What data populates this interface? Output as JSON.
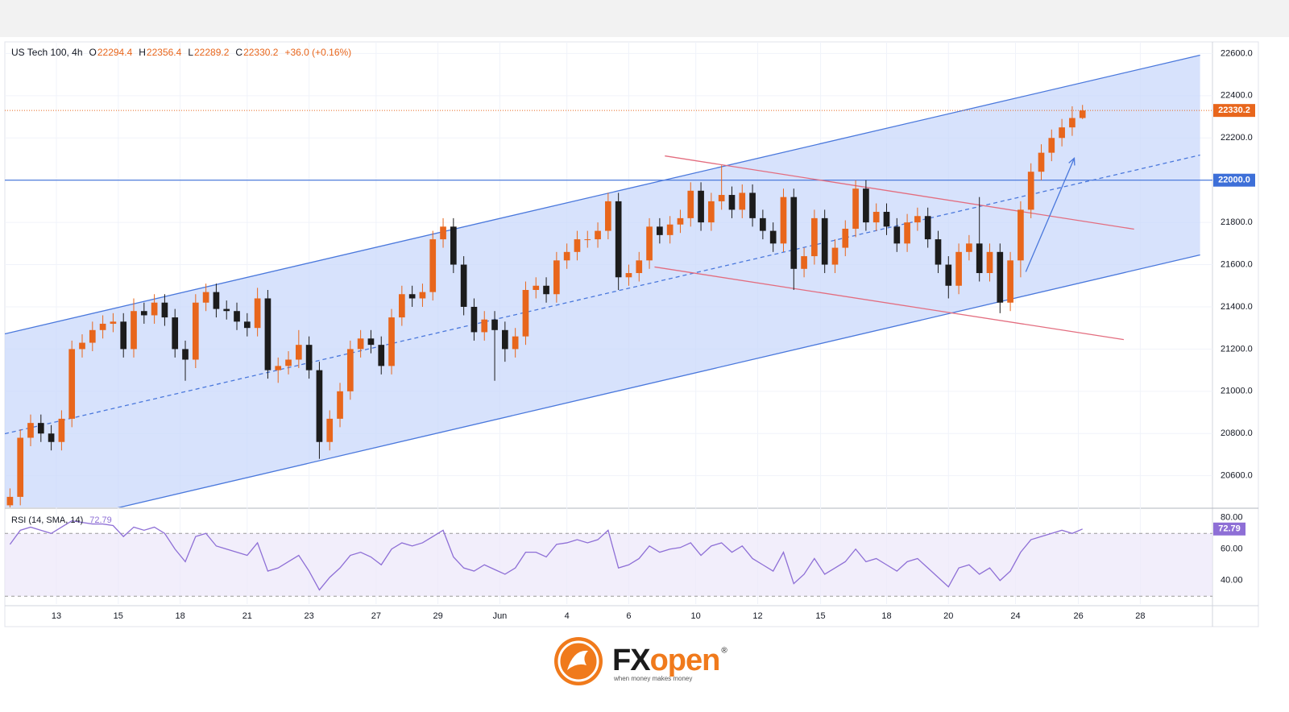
{
  "chart_data": [
    {
      "type": "candlestick",
      "symbol": "US Tech 100, 4h",
      "header_labels": [
        "O",
        "H",
        "L",
        "C"
      ],
      "change": "+36.0 (+0.16%)",
      "up_color": "#e8661c",
      "down_color": "#1c1c1c",
      "open": [
        20460,
        20500,
        20780,
        20850,
        20800,
        20760,
        20870,
        21200,
        21230,
        21290,
        21320,
        21330,
        21200,
        21380,
        21360,
        21420,
        21350,
        21200,
        21150,
        21420,
        21470,
        21390,
        21380,
        21330,
        21300,
        21440,
        21100,
        21120,
        21150,
        21220,
        21100,
        20760,
        20870,
        21000,
        21200,
        21250,
        21220,
        21120,
        21350,
        21460,
        21440,
        21470,
        21720,
        21780,
        21600,
        21400,
        21280,
        21340,
        21290,
        21200,
        21260,
        21480,
        21500,
        21460,
        21620,
        21660,
        21720,
        21720,
        21760,
        21900,
        21540,
        21560,
        21620,
        21780,
        21740,
        21790,
        21820,
        21950,
        21800,
        21900,
        21930,
        21860,
        21940,
        21820,
        21760,
        21700,
        21920,
        21580,
        21640,
        21820,
        21600,
        21680,
        21770,
        21960,
        21800,
        21850,
        21780,
        21700,
        21800,
        21830,
        21720,
        21600,
        21500,
        21660,
        21700,
        21560,
        21660,
        21420,
        21620,
        21860,
        22040,
        22130,
        22200,
        22250,
        22294.4
      ],
      "high": [
        20540,
        20820,
        20890,
        20890,
        20840,
        20910,
        21240,
        21270,
        21330,
        21360,
        21370,
        21370,
        21440,
        21420,
        21460,
        21460,
        21390,
        21240,
        21460,
        21510,
        21510,
        21430,
        21420,
        21370,
        21490,
        21480,
        21160,
        21190,
        21290,
        21260,
        21140,
        20910,
        21040,
        21240,
        21290,
        21290,
        21260,
        21390,
        21500,
        21500,
        21510,
        21760,
        21820,
        21820,
        21640,
        21440,
        21380,
        21380,
        21330,
        21300,
        21520,
        21540,
        21540,
        21660,
        21700,
        21760,
        21760,
        21800,
        21940,
        21940,
        21600,
        21660,
        21820,
        21820,
        21830,
        21860,
        21990,
        21990,
        21940,
        22070,
        21970,
        21980,
        21980,
        21860,
        21800,
        21960,
        21960,
        21680,
        21860,
        21860,
        21720,
        21810,
        22000,
        22000,
        21890,
        21890,
        21820,
        21840,
        21870,
        21870,
        21760,
        21640,
        21700,
        21740,
        21920,
        21700,
        21700,
        21660,
        21900,
        22080,
        22170,
        22240,
        22290,
        22350,
        22356.4
      ],
      "low": [
        20430,
        20460,
        20740,
        20760,
        20720,
        20720,
        20830,
        21160,
        21190,
        21250,
        21280,
        21160,
        21160,
        21320,
        21320,
        21310,
        21160,
        21050,
        21110,
        21380,
        21350,
        21340,
        21290,
        21260,
        21260,
        21060,
        21040,
        21080,
        21110,
        21060,
        20680,
        20720,
        20830,
        20960,
        21160,
        21180,
        21080,
        21080,
        21310,
        21400,
        21400,
        21430,
        21680,
        21560,
        21360,
        21240,
        21240,
        21050,
        21140,
        21160,
        21220,
        21440,
        21420,
        21420,
        21580,
        21620,
        21680,
        21680,
        21720,
        21480,
        21500,
        21520,
        21580,
        21700,
        21700,
        21750,
        21780,
        21760,
        21760,
        21860,
        21820,
        21820,
        21780,
        21720,
        21660,
        21660,
        21480,
        21540,
        21600,
        21560,
        21560,
        21640,
        21730,
        21760,
        21760,
        21740,
        21660,
        21660,
        21760,
        21680,
        21560,
        21440,
        21460,
        21620,
        21520,
        21520,
        21370,
        21380,
        21540,
        21820,
        22000,
        22090,
        22160,
        22210,
        22289.2
      ],
      "close": [
        20500,
        20780,
        20850,
        20800,
        20760,
        20870,
        21200,
        21230,
        21290,
        21320,
        21330,
        21200,
        21380,
        21360,
        21420,
        21350,
        21200,
        21150,
        21420,
        21470,
        21390,
        21380,
        21330,
        21300,
        21440,
        21100,
        21120,
        21150,
        21220,
        21100,
        20760,
        20870,
        21000,
        21200,
        21250,
        21220,
        21120,
        21350,
        21460,
        21440,
        21470,
        21720,
        21780,
        21600,
        21400,
        21280,
        21340,
        21290,
        21200,
        21260,
        21480,
        21500,
        21460,
        21620,
        21660,
        21720,
        21720,
        21760,
        21900,
        21540,
        21560,
        21620,
        21780,
        21740,
        21790,
        21820,
        21950,
        21800,
        21900,
        21930,
        21860,
        21940,
        21820,
        21760,
        21700,
        21920,
        21580,
        21640,
        21820,
        21600,
        21680,
        21770,
        21960,
        21800,
        21850,
        21780,
        21700,
        21800,
        21830,
        21720,
        21600,
        21500,
        21660,
        21700,
        21560,
        21660,
        21420,
        21620,
        21860,
        22040,
        22130,
        22200,
        22250,
        22294.4,
        22330.2
      ],
      "xlim": [
        -0.5,
        116.6
      ],
      "xticks": [
        {
          "value": 4.5,
          "label": "13"
        },
        {
          "value": 10.5,
          "label": "15"
        },
        {
          "value": 16.5,
          "label": "18"
        },
        {
          "value": 23,
          "label": "21"
        },
        {
          "value": 29,
          "label": "23"
        },
        {
          "value": 35.5,
          "label": "27"
        },
        {
          "value": 41.5,
          "label": "29"
        },
        {
          "value": 47.5,
          "label": "Jun"
        },
        {
          "value": 54,
          "label": "4"
        },
        {
          "value": 60,
          "label": "6"
        },
        {
          "value": 66.5,
          "label": "10"
        },
        {
          "value": 72.5,
          "label": "12"
        },
        {
          "value": 78.6,
          "label": "15"
        },
        {
          "value": 85,
          "label": "18"
        },
        {
          "value": 91,
          "label": "20"
        },
        {
          "value": 97.5,
          "label": "24"
        },
        {
          "value": 103.6,
          "label": "26"
        },
        {
          "value": 109.6,
          "label": "28"
        }
      ],
      "ylim": [
        20450,
        22655
      ],
      "yticks": [
        {
          "value": 20600,
          "label": "20600.0"
        },
        {
          "value": 20800,
          "label": "20800.0"
        },
        {
          "value": 21000,
          "label": "21000.0"
        },
        {
          "value": 21200,
          "label": "21200.0"
        },
        {
          "value": 21400,
          "label": "21400.0"
        },
        {
          "value": 21600,
          "label": "21600.0"
        },
        {
          "value": 21800,
          "label": "21800.0"
        },
        {
          "value": 22000,
          "label": "22000.0"
        },
        {
          "value": 22200,
          "label": "22200.0"
        },
        {
          "value": 22400,
          "label": "22400.0"
        },
        {
          "value": 22600,
          "label": "22600.0"
        }
      ],
      "grid": true,
      "level": {
        "value": 22000,
        "label": "22000.0",
        "color": "#3d6fd8"
      },
      "channel_fill": "#c9d8fb",
      "drawings": [
        {
          "color": "#4a78dc",
          "style": "solid",
          "points": [
            [
              -0.5,
              21272
            ],
            [
              115.4,
              22592
            ]
          ]
        },
        {
          "color": "#4a78dc",
          "style": "solid",
          "points": [
            [
              -0.5,
              20323
            ],
            [
              115.4,
              21646
            ]
          ]
        },
        {
          "color": "#4a78dc",
          "style": "dashed",
          "points": [
            [
              -0.5,
              20799
            ],
            [
              115.4,
              22119
            ]
          ]
        },
        {
          "color": "#e36d7f",
          "style": "solid",
          "points": [
            [
              63.5,
              22115
            ],
            [
              109.0,
              21768
            ]
          ]
        },
        {
          "color": "#e36d7f",
          "style": "solid",
          "points": [
            [
              62.5,
              21589
            ],
            [
              108.0,
              21245
            ]
          ]
        },
        {
          "color": "#4a78dc",
          "style": "arrow",
          "points": [
            [
              98.5,
              21566
            ],
            [
              103.2,
              22104
            ]
          ]
        }
      ]
    },
    {
      "type": "line",
      "title": "RSI (14, SMA, 14)",
      "series": [
        {
          "name": "RSI",
          "color": "#8e6fd6",
          "values": [
            63,
            72,
            74,
            72,
            70,
            74,
            78,
            77,
            76,
            76,
            75,
            68,
            74,
            72,
            74,
            70,
            60,
            52,
            68,
            70,
            62,
            60,
            58,
            56,
            64,
            46,
            48,
            52,
            56,
            46,
            34,
            42,
            48,
            56,
            58,
            55,
            50,
            60,
            64,
            62,
            64,
            68,
            72,
            55,
            48,
            46,
            50,
            47,
            44,
            48,
            58,
            58,
            55,
            63,
            64,
            66,
            64,
            66,
            72,
            48,
            50,
            54,
            62,
            58,
            60,
            61,
            64,
            56,
            62,
            64,
            58,
            62,
            54,
            50,
            46,
            58,
            38,
            44,
            54,
            44,
            48,
            52,
            60,
            52,
            54,
            50,
            46,
            52,
            54,
            48,
            42,
            36,
            48,
            50,
            44,
            48,
            40,
            46,
            58,
            66,
            68,
            70,
            72,
            70,
            72.79
          ]
        }
      ],
      "ylim": [
        25,
        85
      ],
      "yticks": [
        {
          "value": 40,
          "label": "40.00"
        },
        {
          "value": 60,
          "label": "60.00"
        },
        {
          "value": 80,
          "label": "80.00"
        }
      ],
      "band": [
        30,
        70
      ],
      "band_color": "#ede7fa"
    }
  ],
  "logo": {
    "fx": "FX",
    "open": "open",
    "mark": "®",
    "tagline": "when money makes money"
  }
}
